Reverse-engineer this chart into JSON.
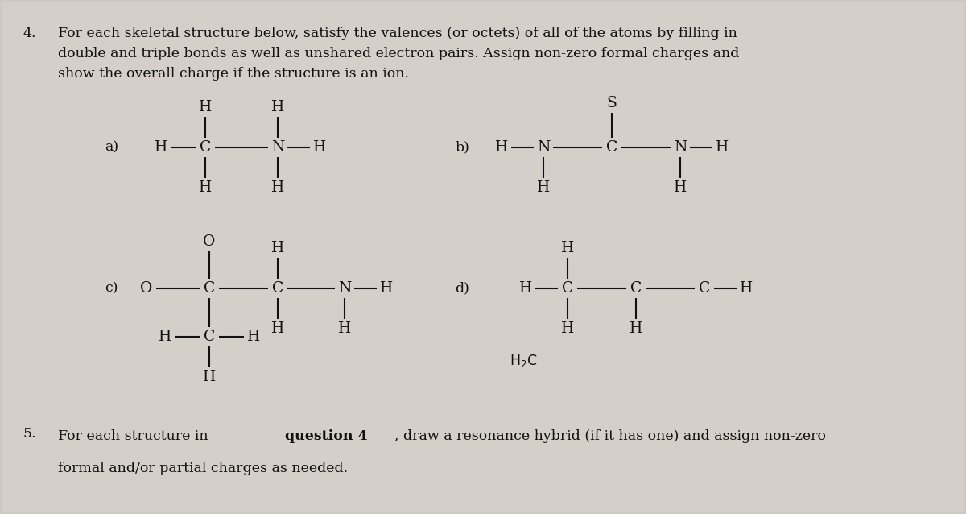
{
  "background_color": "#ccc8c2",
  "title_number": "4.",
  "title_text": "For each skeletal structure below, satisfy the valences (or octets) of all of the atoms by filling in\ndouble and triple bonds as well as unshared electron pairs. Assign non-zero formal charges and\nshow the overall charge if the structure is an ion.",
  "question5_number": "5.",
  "question5_text_line1": "For each structure in ",
  "question5_bold": "question 4",
  "question5_text_line2": ", draw a resonance hybrid (if it has one) and assign non-zero",
  "question5_text_line3": "formal and/or partial charges as needed.",
  "font_size_title": 12.5,
  "font_size_chem": 13.5,
  "text_color": "#111111"
}
